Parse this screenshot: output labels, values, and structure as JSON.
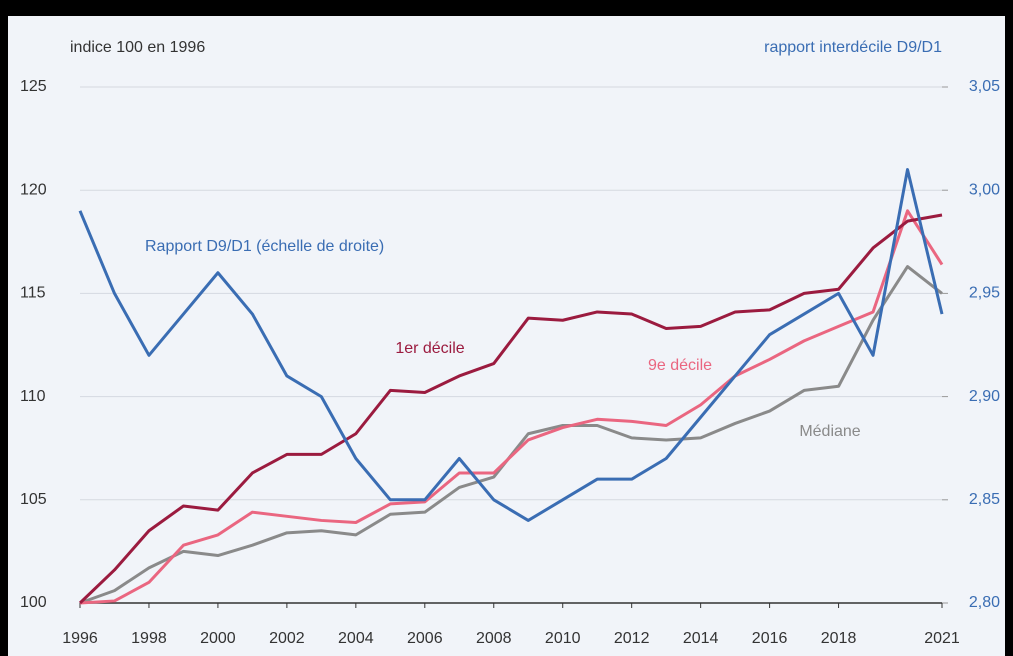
{
  "chart_data": {
    "type": "line",
    "y_label": "indice 100 en 1996",
    "y2_label": "rapport interdécile D9/D1",
    "x": [
      1996,
      1997,
      1998,
      1999,
      2000,
      2001,
      2002,
      2003,
      2004,
      2005,
      2006,
      2007,
      2008,
      2009,
      2010,
      2011,
      2012,
      2013,
      2014,
      2015,
      2016,
      2017,
      2018,
      2019,
      2020,
      2021
    ],
    "xlim": [
      1996,
      2021
    ],
    "xticks": [
      1996,
      1998,
      2000,
      2002,
      2004,
      2006,
      2008,
      2010,
      2012,
      2014,
      2016,
      2018,
      2021
    ],
    "ylim": [
      100,
      125
    ],
    "yticks": [
      100,
      105,
      110,
      115,
      120,
      125
    ],
    "y2lim": [
      2.8,
      3.05
    ],
    "y2ticks": [
      {
        "value": 2.8,
        "label": "2,80"
      },
      {
        "value": 2.85,
        "label": "2,85"
      },
      {
        "value": 2.9,
        "label": "2,90"
      },
      {
        "value": 2.95,
        "label": "2,95"
      },
      {
        "value": 3.0,
        "label": "3,00"
      },
      {
        "value": 3.05,
        "label": "3,05"
      }
    ],
    "grid": true,
    "series": [
      {
        "name": "1er décile",
        "color": "#9b1b3f",
        "values": [
          100,
          101.6,
          103.5,
          104.7,
          104.5,
          106.3,
          107.2,
          107.2,
          108.2,
          110.3,
          110.2,
          111.0,
          111.6,
          113.8,
          113.7,
          114.1,
          114.0,
          113.3,
          113.4,
          114.1,
          114.2,
          115.0,
          115.2,
          117.2,
          118.5,
          118.8
        ]
      },
      {
        "name": "9e décile",
        "color": "#ea6680",
        "values": [
          100,
          100.1,
          101.0,
          102.8,
          103.3,
          104.4,
          104.2,
          104.0,
          103.9,
          104.8,
          104.9,
          106.3,
          106.3,
          107.9,
          108.5,
          108.9,
          108.8,
          108.6,
          109.6,
          111.0,
          111.8,
          112.7,
          113.4,
          114.1,
          119.0,
          116.4
        ]
      },
      {
        "name": "Médiane",
        "color": "#8a8a8a",
        "values": [
          100,
          100.6,
          101.7,
          102.5,
          102.3,
          102.8,
          103.4,
          103.5,
          103.3,
          104.3,
          104.4,
          105.6,
          106.1,
          108.2,
          108.6,
          108.6,
          108.0,
          107.9,
          108.0,
          108.7,
          109.3,
          110.3,
          110.5,
          113.7,
          116.3,
          115.0
        ]
      },
      {
        "name": "Rapport D9/D1 (échelle de droite)",
        "color": "#3a6db3",
        "axis": "y2",
        "values": [
          2.99,
          2.95,
          2.92,
          2.94,
          2.96,
          2.94,
          2.91,
          2.9,
          2.87,
          2.85,
          2.85,
          2.87,
          2.85,
          2.84,
          2.85,
          2.86,
          2.86,
          2.87,
          2.89,
          2.91,
          2.93,
          2.94,
          2.95,
          2.92,
          3.01,
          2.94
        ]
      }
    ]
  }
}
